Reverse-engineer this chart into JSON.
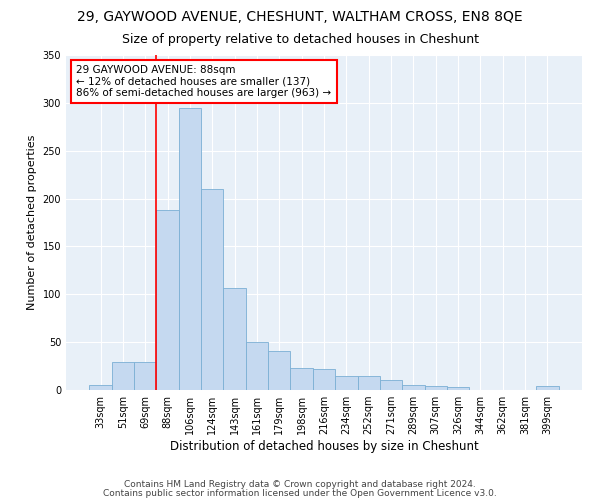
{
  "title": "29, GAYWOOD AVENUE, CHESHUNT, WALTHAM CROSS, EN8 8QE",
  "subtitle": "Size of property relative to detached houses in Cheshunt",
  "xlabel": "Distribution of detached houses by size in Cheshunt",
  "ylabel": "Number of detached properties",
  "categories": [
    "33sqm",
    "51sqm",
    "69sqm",
    "88sqm",
    "106sqm",
    "124sqm",
    "143sqm",
    "161sqm",
    "179sqm",
    "198sqm",
    "216sqm",
    "234sqm",
    "252sqm",
    "271sqm",
    "289sqm",
    "307sqm",
    "326sqm",
    "344sqm",
    "362sqm",
    "381sqm",
    "399sqm"
  ],
  "values": [
    5,
    29,
    29,
    188,
    295,
    210,
    107,
    50,
    41,
    23,
    22,
    15,
    15,
    10,
    5,
    4,
    3,
    0,
    0,
    0,
    4
  ],
  "bar_color": "#c5d9f0",
  "bar_edgecolor": "#7bafd4",
  "vline_color": "red",
  "vline_idx": 3,
  "annotation_text": "29 GAYWOOD AVENUE: 88sqm\n← 12% of detached houses are smaller (137)\n86% of semi-detached houses are larger (963) →",
  "annotation_box_color": "white",
  "annotation_box_edgecolor": "red",
  "ylim": [
    0,
    350
  ],
  "yticks": [
    0,
    50,
    100,
    150,
    200,
    250,
    300,
    350
  ],
  "footer1": "Contains HM Land Registry data © Crown copyright and database right 2024.",
  "footer2": "Contains public sector information licensed under the Open Government Licence v3.0.",
  "plot_bg_color": "#e8f0f8",
  "title_fontsize": 10,
  "subtitle_fontsize": 9,
  "xlabel_fontsize": 8.5,
  "ylabel_fontsize": 8,
  "tick_fontsize": 7,
  "annot_fontsize": 7.5,
  "footer_fontsize": 6.5
}
